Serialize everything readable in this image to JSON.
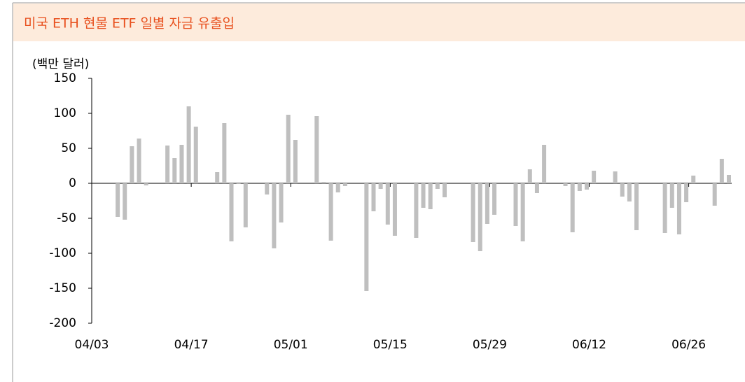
{
  "chart_data": {
    "type": "bar",
    "title": "미국 ETH 현물 ETF 일별 자금 유출입",
    "y_label": "(백만 달러)",
    "color": "#bfbfbf",
    "categories": [
      "04/03",
      null,
      null,
      null,
      null,
      null,
      null,
      null,
      null,
      null,
      null,
      null,
      null,
      null,
      "04/17",
      null,
      null,
      null,
      null,
      null,
      null,
      null,
      null,
      null,
      null,
      null,
      null,
      null,
      "05/01",
      null,
      null,
      null,
      null,
      null,
      null,
      null,
      null,
      null,
      null,
      null,
      null,
      null,
      "05/15",
      null,
      null,
      null,
      null,
      null,
      null,
      null,
      null,
      null,
      null,
      null,
      null,
      null,
      "05/29",
      null,
      null,
      null,
      null,
      null,
      null,
      null,
      null,
      null,
      null,
      null,
      null,
      null,
      "06/12",
      null,
      null,
      null,
      null,
      null,
      null,
      null,
      null,
      null,
      null,
      null,
      null,
      null,
      "06/26",
      null,
      null,
      null,
      null,
      null,
      null
    ],
    "values": [
      null,
      null,
      null,
      null,
      -48,
      -52,
      53,
      64,
      -3,
      null,
      null,
      54,
      36,
      55,
      110,
      81,
      null,
      null,
      16,
      86,
      -83,
      -1,
      -63,
      null,
      null,
      -16,
      -93,
      -56,
      98,
      62,
      null,
      null,
      96,
      2,
      -82,
      -13,
      -4,
      null,
      null,
      -154,
      -40,
      -8,
      -59,
      -75,
      null,
      null,
      -78,
      -35,
      -37,
      -8,
      -20,
      null,
      null,
      null,
      -84,
      -97,
      -58,
      -45,
      null,
      null,
      -61,
      -83,
      20,
      -14,
      55,
      null,
      null,
      -4,
      -70,
      -11,
      -9,
      18,
      null,
      null,
      17,
      -19,
      -26,
      -67,
      null,
      null,
      null,
      -71,
      -35,
      -73,
      -27,
      11,
      null,
      null,
      -32,
      35,
      12
    ],
    "ylim": [
      -200,
      150
    ],
    "yticks": [
      -200,
      -150,
      -100,
      -50,
      0,
      50,
      100,
      150
    ]
  }
}
